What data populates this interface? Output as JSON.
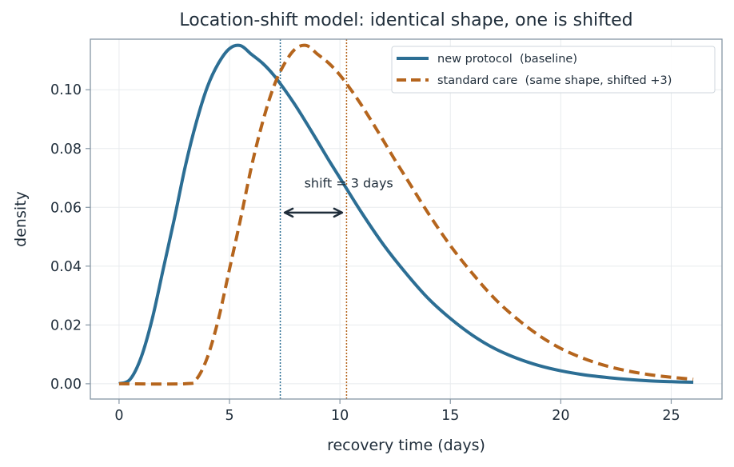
{
  "chart_data": {
    "type": "line",
    "title": "Location-shift model: identical shape, one is shifted",
    "xlabel": "recovery time (days)",
    "ylabel": "density",
    "xlim": [
      -1.3,
      27.3
    ],
    "ylim": [
      -0.0052,
      0.1172
    ],
    "x_ticks": [
      "0",
      "5",
      "10",
      "15",
      "20",
      "25"
    ],
    "y_ticks": [
      "0.00",
      "0.02",
      "0.04",
      "0.06",
      "0.08",
      "0.10"
    ],
    "grid": true,
    "legend_position": "top-right",
    "series": [
      {
        "name": "new protocol  (baseline)",
        "style": "solid",
        "color": "#2c6e94",
        "x": [
          0,
          0.5,
          1,
          1.5,
          2,
          2.5,
          3,
          3.5,
          4,
          4.5,
          5,
          5.5,
          6,
          6.5,
          7,
          7.5,
          8,
          8.5,
          9,
          9.5,
          10,
          11,
          12,
          13,
          14,
          15,
          16,
          17,
          18,
          19,
          20,
          21,
          22,
          23,
          24,
          25,
          26
        ],
        "y": [
          0,
          0.0015,
          0.009,
          0.022,
          0.039,
          0.056,
          0.074,
          0.089,
          0.101,
          0.109,
          0.114,
          0.115,
          0.112,
          0.109,
          0.105,
          0.1,
          0.0945,
          0.0885,
          0.0823,
          0.076,
          0.07,
          0.058,
          0.047,
          0.0375,
          0.029,
          0.0222,
          0.0165,
          0.012,
          0.0087,
          0.0062,
          0.0044,
          0.0031,
          0.0022,
          0.0015,
          0.001,
          0.0007,
          0.0005
        ]
      },
      {
        "name": "standard care  (same shape, shifted +3)",
        "style": "dashed",
        "color": "#b5651d",
        "x": [
          0,
          3,
          3.5,
          4,
          4.5,
          5,
          5.5,
          6,
          6.5,
          7,
          7.5,
          8,
          8.5,
          9,
          9.5,
          10,
          10.5,
          11,
          11.5,
          12,
          12.5,
          13,
          14,
          15,
          16,
          17,
          18,
          19,
          20,
          21,
          22,
          23,
          24,
          25,
          26
        ],
        "y": [
          0,
          0,
          0.0015,
          0.009,
          0.022,
          0.039,
          0.056,
          0.074,
          0.089,
          0.101,
          0.109,
          0.114,
          0.115,
          0.112,
          0.109,
          0.105,
          0.1,
          0.0945,
          0.0885,
          0.0823,
          0.076,
          0.07,
          0.058,
          0.047,
          0.0375,
          0.029,
          0.0222,
          0.0165,
          0.012,
          0.0087,
          0.0062,
          0.0044,
          0.0031,
          0.0022,
          0.0015
        ]
      }
    ],
    "reference_lines": [
      {
        "x": 7.3,
        "color": "#2c6e94"
      },
      {
        "x": 10.3,
        "color": "#b5651d"
      }
    ],
    "annotation": {
      "text": "shift  = 3 days",
      "text_at": [
        10.4,
        0.0668
      ],
      "arrow_from": 7.5,
      "arrow_to": 10.1,
      "arrow_y": 0.0582
    }
  }
}
